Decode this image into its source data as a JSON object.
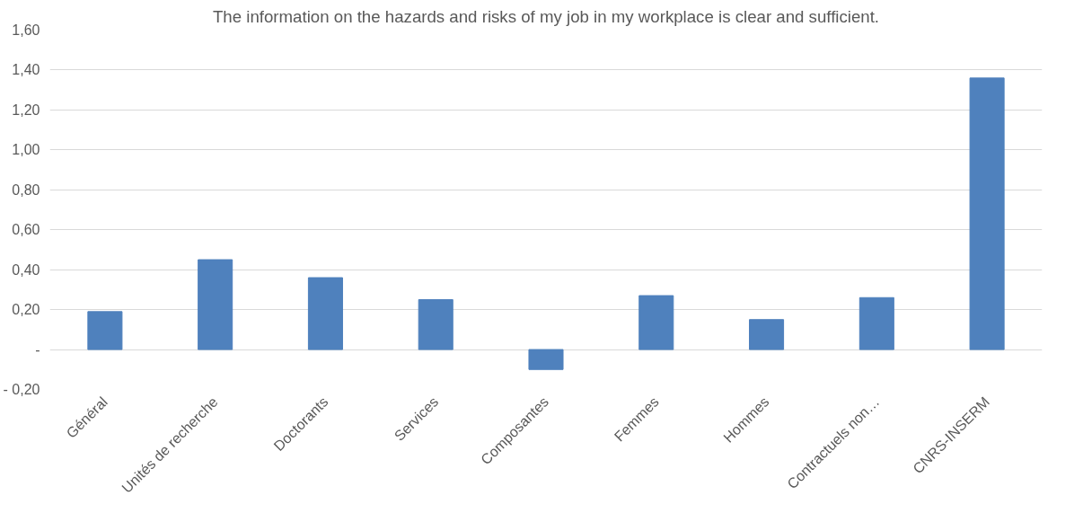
{
  "chart_data": {
    "type": "bar",
    "title": "The information on the hazards and risks of my job in my workplace is clear and sufficient.",
    "categories": [
      "Général",
      "Unités de recherche",
      "Doctorants",
      "Services",
      "Composantes",
      "Femmes",
      "Hommes",
      "Contractuels non…",
      "CNRS-INSERM"
    ],
    "values": [
      0.19,
      0.45,
      0.36,
      0.25,
      -0.1,
      0.27,
      0.15,
      0.26,
      1.36
    ],
    "color": "#4f81bd",
    "ylim": [
      -0.2,
      1.6
    ],
    "yticks": [
      {
        "value": -0.2,
        "label": "- 0,20"
      },
      {
        "value": 0,
        "label": "-"
      },
      {
        "value": 0.2,
        "label": "0,20"
      },
      {
        "value": 0.4,
        "label": "0,40"
      },
      {
        "value": 0.6,
        "label": "0,60"
      },
      {
        "value": 0.8,
        "label": "0,80"
      },
      {
        "value": 1.0,
        "label": "1,00"
      },
      {
        "value": 1.2,
        "label": "1,20"
      },
      {
        "value": 1.4,
        "label": "1,40"
      },
      {
        "value": 1.6,
        "label": "1,60"
      }
    ],
    "grid": "y"
  }
}
